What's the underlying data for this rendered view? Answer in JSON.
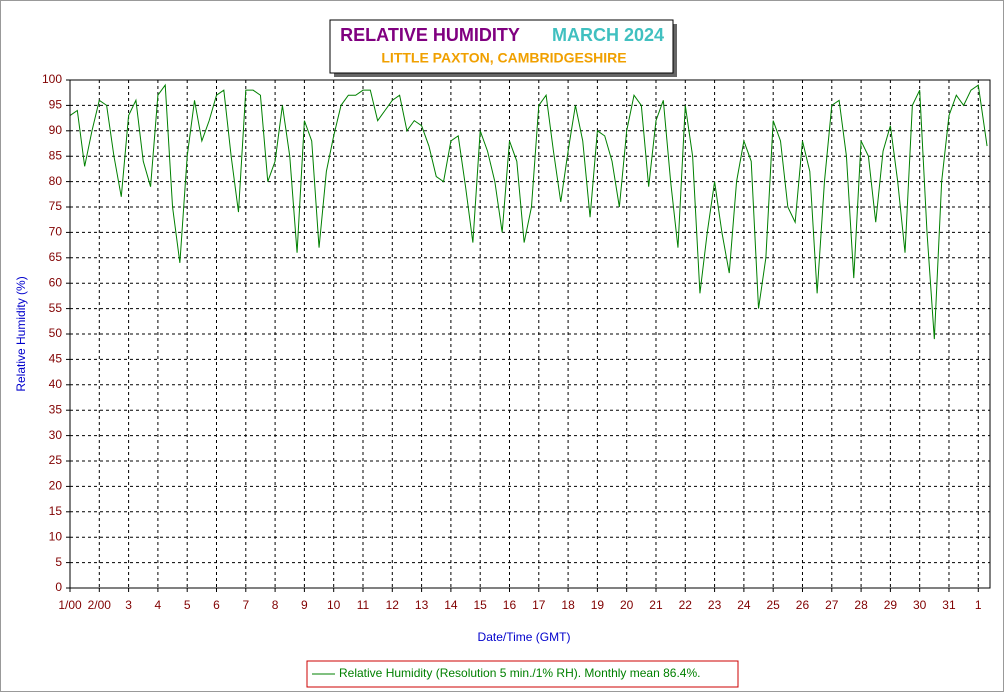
{
  "chart_data": {
    "type": "line",
    "title": "RELATIVE HUMIDITY",
    "title_right": "MARCH 2024",
    "subtitle": "LITTLE PAXTON, CAMBRIDGESHIRE",
    "y_label": "Relative Humidity (%)",
    "x_label": "Date/Time (GMT)",
    "x": [
      1,
      1.25,
      1.5,
      1.75,
      2,
      2.25,
      2.5,
      2.75,
      3,
      3.25,
      3.5,
      3.75,
      4,
      4.25,
      4.5,
      4.75,
      5,
      5.25,
      5.5,
      5.75,
      6,
      6.25,
      6.5,
      6.75,
      7,
      7.25,
      7.5,
      7.75,
      8,
      8.25,
      8.5,
      8.75,
      9,
      9.25,
      9.5,
      9.75,
      10,
      10.25,
      10.5,
      10.75,
      11,
      11.25,
      11.5,
      11.75,
      12,
      12.25,
      12.5,
      12.75,
      13,
      13.25,
      13.5,
      13.75,
      14,
      14.25,
      14.5,
      14.75,
      15,
      15.25,
      15.5,
      15.75,
      16,
      16.25,
      16.5,
      16.75,
      17,
      17.25,
      17.5,
      17.75,
      18,
      18.25,
      18.5,
      18.75,
      19,
      19.25,
      19.5,
      19.75,
      20,
      20.25,
      20.5,
      20.75,
      21,
      21.25,
      21.5,
      21.75,
      22,
      22.25,
      22.5,
      22.75,
      23,
      23.25,
      23.5,
      23.75,
      24,
      24.25,
      24.5,
      24.75,
      25,
      25.25,
      25.5,
      25.75,
      26,
      26.25,
      26.5,
      26.75,
      27,
      27.25,
      27.5,
      27.75,
      28,
      28.25,
      28.5,
      28.75,
      29,
      29.25,
      29.5,
      29.75,
      30,
      30.25,
      30.5,
      30.75,
      31,
      31.25,
      31.5,
      31.75,
      32,
      32.3
    ],
    "series": [
      {
        "name": "Relative Humidity (Resolution 5 min./1% RH). Monthly mean 86.4%.",
        "color": "#008000",
        "values": [
          93,
          94,
          83,
          90,
          96,
          95,
          85,
          77,
          93,
          96,
          84,
          79,
          97,
          99,
          75,
          64,
          85,
          96,
          88,
          92,
          97,
          98,
          85,
          74,
          98,
          98,
          97,
          80,
          84,
          95,
          85,
          66,
          92,
          88,
          67,
          82,
          89,
          95,
          97,
          97,
          98,
          98,
          92,
          94,
          96,
          97,
          90,
          92,
          91,
          87,
          81,
          80,
          88,
          89,
          79,
          68,
          90,
          86,
          80,
          70,
          88,
          84,
          68,
          75,
          95,
          97,
          86,
          76,
          86,
          95,
          88,
          73,
          90,
          89,
          84,
          75,
          90,
          97,
          95,
          79,
          92,
          96,
          80,
          67,
          95,
          85,
          58,
          70,
          80,
          70,
          62,
          80,
          88,
          84,
          55,
          65,
          92,
          88,
          75,
          72,
          88,
          82,
          58,
          80,
          95,
          96,
          85,
          61,
          88,
          85,
          72,
          86,
          91,
          80,
          66,
          95,
          98,
          70,
          49,
          80,
          93,
          97,
          95,
          98,
          99,
          87
        ]
      }
    ],
    "xlim": [
      1,
      32.4
    ],
    "xticks": [
      {
        "value": 1,
        "label": "1/00"
      },
      {
        "value": 2,
        "label": "2/00"
      },
      3,
      4,
      5,
      6,
      7,
      8,
      9,
      10,
      11,
      12,
      13,
      14,
      15,
      16,
      17,
      18,
      19,
      20,
      21,
      22,
      23,
      24,
      25,
      26,
      27,
      28,
      29,
      30,
      31,
      {
        "value": 32,
        "label": "1"
      }
    ],
    "ylim": [
      0,
      100
    ],
    "yticks": [
      0,
      5,
      10,
      15,
      20,
      25,
      30,
      35,
      40,
      45,
      50,
      55,
      60,
      65,
      70,
      75,
      80,
      85,
      90,
      95,
      100
    ],
    "grid": true
  }
}
